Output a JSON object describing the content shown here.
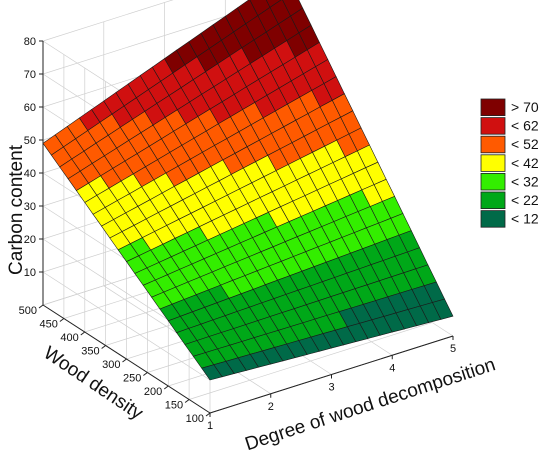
{
  "chart_data": {
    "type": "surface",
    "x_axis": {
      "label": "Degree of wood decomposition",
      "range": [
        1,
        5
      ],
      "ticks": [
        "1",
        "2",
        "3",
        "4",
        "5"
      ]
    },
    "y_axis": {
      "label": "Wood density",
      "range": [
        100,
        500
      ],
      "ticks": [
        "100",
        "150",
        "200",
        "250",
        "300",
        "350",
        "400",
        "450",
        "500"
      ]
    },
    "z_axis": {
      "label": "Carbon content",
      "range": [
        0,
        80
      ],
      "ticks": [
        "10",
        "20",
        "30",
        "40",
        "50",
        "60",
        "70",
        "80"
      ]
    },
    "surface_corners": [
      {
        "x": 1,
        "y": 100,
        "z": 10
      },
      {
        "x": 5,
        "y": 100,
        "z": 6
      },
      {
        "x": 1,
        "y": 500,
        "z": 49
      },
      {
        "x": 5,
        "y": 500,
        "z": 77
      }
    ],
    "grid": true,
    "legend": {
      "placement": "right",
      "items": [
        {
          "label": "> 70",
          "color": "#7f0000"
        },
        {
          "label": "< 62",
          "color": "#d01010"
        },
        {
          "label": "< 52",
          "color": "#ff5a00"
        },
        {
          "label": "< 42",
          "color": "#ffff00"
        },
        {
          "label": "< 32",
          "color": "#33ee00"
        },
        {
          "label": "< 22",
          "color": "#00a818"
        },
        {
          "label": "< 12",
          "color": "#006a48"
        }
      ]
    }
  }
}
